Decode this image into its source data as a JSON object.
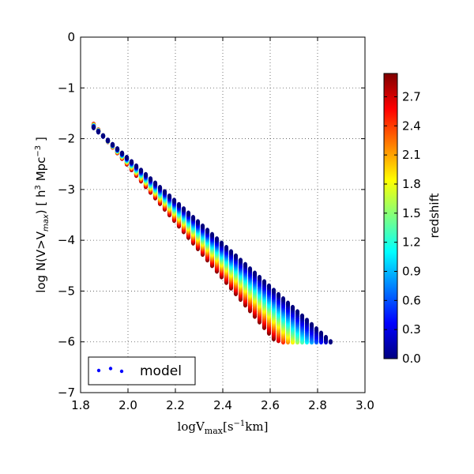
{
  "chart_data": {
    "type": "scatter",
    "title": "",
    "xlabel": {
      "base": "logV",
      "sub": "max",
      "unit_open": "[s",
      "unit_sup": "−1",
      "unit_close": "km]"
    },
    "ylabel": {
      "t1": "log N(V>V",
      "sub": "max",
      "t2": ") [ h",
      "sup1": "3",
      "t3": " Mpc",
      "sup2": "−3",
      "t4": " ]"
    },
    "xlim": [
      1.8,
      3.0
    ],
    "ylim": [
      -7,
      0
    ],
    "xticks": [
      "1.8",
      "2.0",
      "2.2",
      "2.4",
      "2.6",
      "2.8",
      "3.0"
    ],
    "yticks": [
      "−7",
      "−6",
      "−5",
      "−4",
      "−3",
      "−2",
      "−1",
      "0"
    ],
    "grid": true,
    "legend": {
      "label": "model",
      "location": "lower-left"
    },
    "colorbar": {
      "label": "redshift",
      "range": [
        0.0,
        2.94
      ],
      "ticks": [
        "0.0",
        "0.3",
        "0.6",
        "0.9",
        "1.2",
        "1.5",
        "1.8",
        "2.1",
        "2.4",
        "2.7"
      ],
      "colormap": "jet"
    },
    "model": {
      "x_start": 1.855,
      "x_step": 0.02,
      "y_at_x_start": -1.78,
      "redshift_min": 0.0,
      "redshift_max": 2.94,
      "x_end_at_redshift_min": 2.855,
      "x_end_at_redshift_max": 2.62,
      "y_floor": -6.0,
      "slope_at_redshift_min": -4.22,
      "slope_at_redshift_max": -5.55
    },
    "colors": {
      "jet": [
        "#00007f",
        "#0000ff",
        "#007fff",
        "#00ffff",
        "#7fff7f",
        "#ffff00",
        "#ff7f00",
        "#ff0000",
        "#7f0000"
      ]
    }
  }
}
